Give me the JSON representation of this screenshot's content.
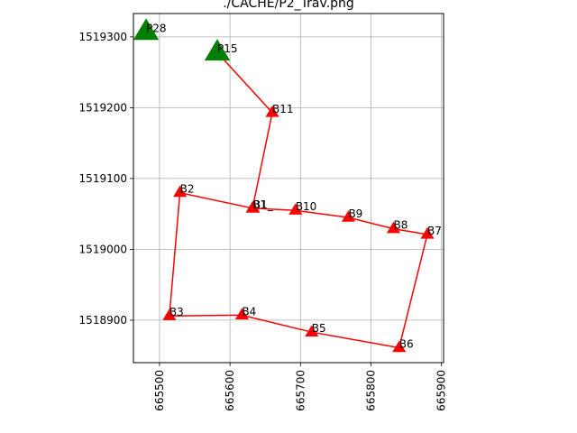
{
  "chart_data": {
    "type": "scatter",
    "title": "./CACHE/P2_Trav.png",
    "xlabel": "",
    "ylabel": "",
    "xlim": [
      665463,
      665903
    ],
    "ylim": [
      1518840,
      1519333
    ],
    "xticks": [
      665500,
      665600,
      665700,
      665800,
      665900
    ],
    "yticks": [
      1518900,
      1519000,
      1519100,
      1519200,
      1519300
    ],
    "x_tick_rotation": 90,
    "grid": true,
    "series": [
      {
        "marker": "triangle",
        "color": "#008000",
        "size": "large",
        "points": [
          {
            "label": "P28",
            "x": 665481,
            "y": 1519307
          },
          {
            "label": "P15",
            "x": 665582,
            "y": 1519278
          }
        ]
      },
      {
        "marker": "triangle",
        "color": "#ff0000",
        "size": "small",
        "points": [
          {
            "label": "B1",
            "x": 665632,
            "y": 1519058
          },
          {
            "label": "B1_",
            "x": 665633,
            "y": 1519058
          },
          {
            "label": "B11",
            "x": 665660,
            "y": 1519193
          },
          {
            "label": "B2",
            "x": 665529,
            "y": 1519080
          },
          {
            "label": "B3",
            "x": 665514,
            "y": 1518906
          },
          {
            "label": "B4",
            "x": 665617,
            "y": 1518907
          },
          {
            "label": "B5",
            "x": 665716,
            "y": 1518883
          },
          {
            "label": "B6",
            "x": 665840,
            "y": 1518861
          },
          {
            "label": "B7",
            "x": 665880,
            "y": 1519021
          },
          {
            "label": "B8",
            "x": 665832,
            "y": 1519029
          },
          {
            "label": "B9",
            "x": 665768,
            "y": 1519045
          },
          {
            "label": "B10",
            "x": 665693,
            "y": 1519055
          }
        ]
      }
    ],
    "lines": [
      {
        "color": "#ff0000",
        "points": [
          [
            665582,
            1519278
          ],
          [
            665660,
            1519193
          ],
          [
            665632,
            1519058
          ],
          [
            665529,
            1519080
          ],
          [
            665514,
            1518906
          ],
          [
            665617,
            1518907
          ],
          [
            665716,
            1518883
          ],
          [
            665840,
            1518861
          ],
          [
            665880,
            1519021
          ],
          [
            665832,
            1519029
          ],
          [
            665768,
            1519045
          ],
          [
            665693,
            1519055
          ],
          [
            665633,
            1519058
          ]
        ]
      }
    ]
  }
}
